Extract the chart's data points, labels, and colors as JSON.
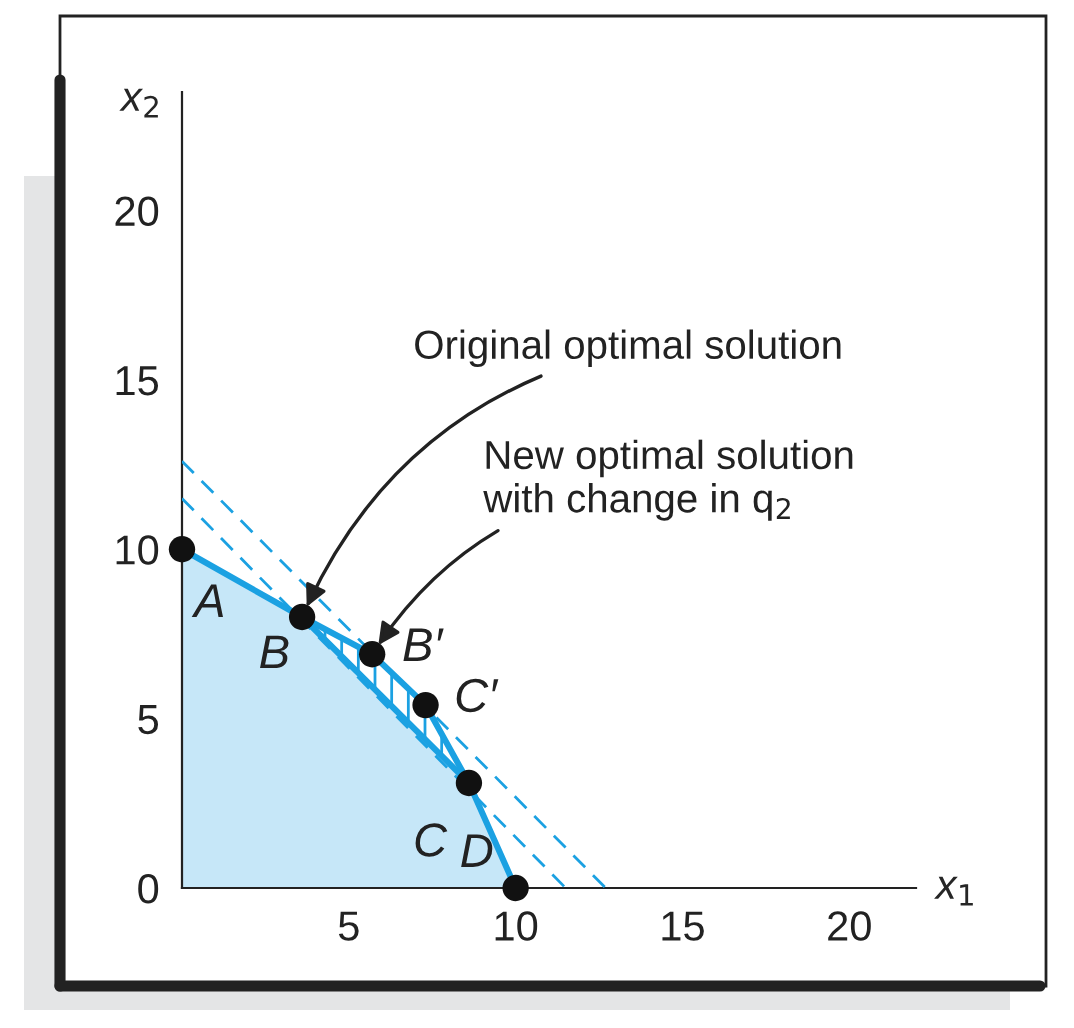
{
  "chart_data": {
    "type": "line",
    "xlabel": "x$_{1}$",
    "ylabel": "x$_{2}$",
    "xlim": [
      0,
      22
    ],
    "ylim": [
      0,
      23.5
    ],
    "xticks": [
      5,
      10,
      15,
      20
    ],
    "yticks": [
      0,
      5,
      10,
      15,
      20
    ],
    "grid": false,
    "series": [
      {
        "type": "area",
        "color": "#1ba1e2",
        "x": [
          0,
          3.6,
          8.6,
          10
        ],
        "values": [
          10,
          8.0,
          3.1,
          0
        ]
      },
      {
        "type": "area",
        "color": "#1ba1e2",
        "x": [
          3.6,
          5.7,
          7.3,
          8.6
        ],
        "values": [
          8.0,
          6.9,
          5.4,
          3.1
        ]
      },
      {
        "color": "#1ba1e2",
        "line_style": "dashed",
        "x": [
          0,
          11.5
        ],
        "values": [
          11.5,
          0
        ]
      },
      {
        "color": "#1ba1e2",
        "line_style": "dashed",
        "x": [
          0,
          12.7
        ],
        "values": [
          12.6,
          0
        ]
      },
      {
        "type": "scatter",
        "color": "#111111",
        "marker": "circle",
        "x": [
          0,
          3.6,
          5.7,
          7.3,
          8.6,
          10
        ],
        "values": [
          10,
          8.0,
          6.9,
          5.4,
          3.1,
          0
        ]
      }
    ],
    "annotations": [
      {
        "text": "A",
        "x": 0,
        "y": 10
      },
      {
        "text": "B",
        "x": 3.6,
        "y": 8.0
      },
      {
        "text": "B′",
        "x": 5.7,
        "y": 6.9
      },
      {
        "text": "C′",
        "x": 7.3,
        "y": 5.4
      },
      {
        "text": "C",
        "x": 8.6,
        "y": 3.1
      },
      {
        "text": "D",
        "x": 10,
        "y": 0
      },
      {
        "text": "Original optimal solution",
        "x": 3.6,
        "y": 8.0
      },
      {
        "text": "New optimal solution\nwith change in q$_{2}$",
        "x": 5.7,
        "y": 6.9
      }
    ]
  }
}
